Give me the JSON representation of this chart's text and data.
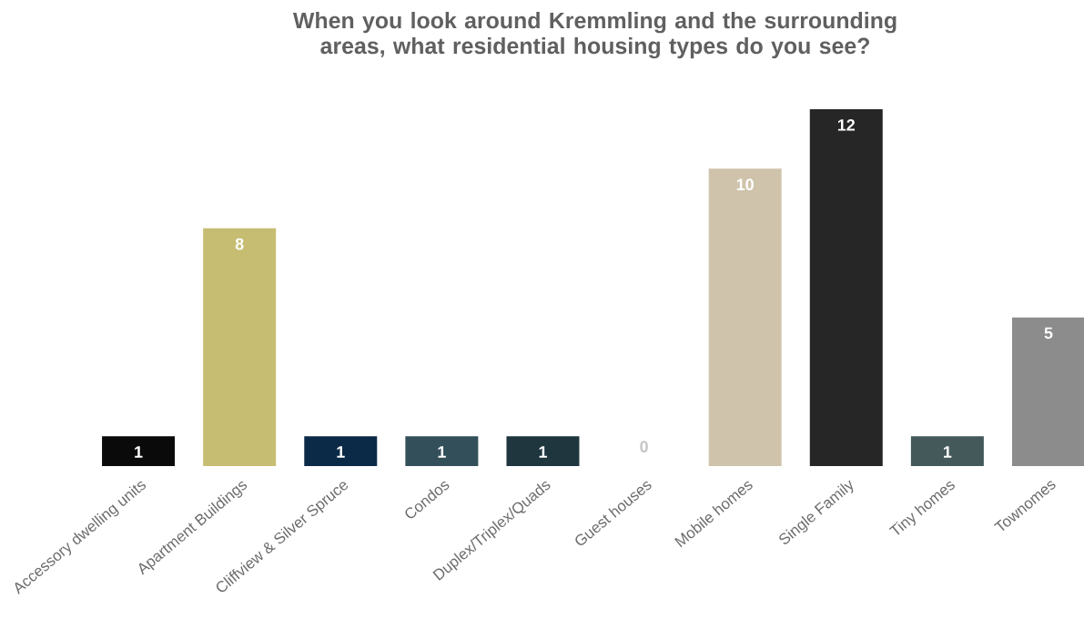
{
  "chart_data": {
    "type": "bar",
    "title": "When you look around Kremmling and the surrounding areas, what residential housing types do you see?",
    "categories": [
      "Accessory dwelling units",
      "Apartment Buildings",
      "Cliffview & Silver Spruce",
      "Condos",
      "Duplex/Triplex/Quads",
      "Guest houses",
      "Mobile homes",
      "Single Family",
      "Tiny homes",
      "Townomes"
    ],
    "values": [
      1,
      8,
      1,
      1,
      1,
      0,
      10,
      12,
      1,
      5
    ],
    "colors": [
      "#0a0a0a",
      "#c6bd72",
      "#0b2a47",
      "#33505a",
      "#1f363f",
      "#e6e6e6",
      "#cfc3ab",
      "#262626",
      "#44595a",
      "#8c8c8c"
    ],
    "data_labels": true
  }
}
